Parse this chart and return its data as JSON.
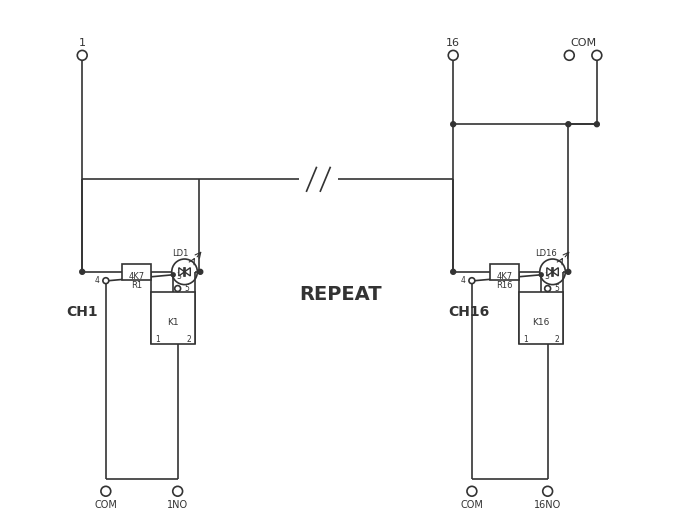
{
  "bg_color": "#ffffff",
  "line_color": "#333333",
  "text_color": "#333333",
  "figsize": [
    6.83,
    5.21
  ],
  "dpi": 100,
  "title": "REPEAT",
  "ch1_label": "CH1",
  "ch16_label": "CH16",
  "k1_label": "K1",
  "k16_label": "K16",
  "ld1_label": "LD1",
  "ld16_label": "LD16",
  "pin1_label": "1",
  "pin16_label": "16",
  "com_label": "COM",
  "com1_label": "COM",
  "no1_label": "1NO",
  "com16_label": "COM",
  "no16_label": "16NO"
}
